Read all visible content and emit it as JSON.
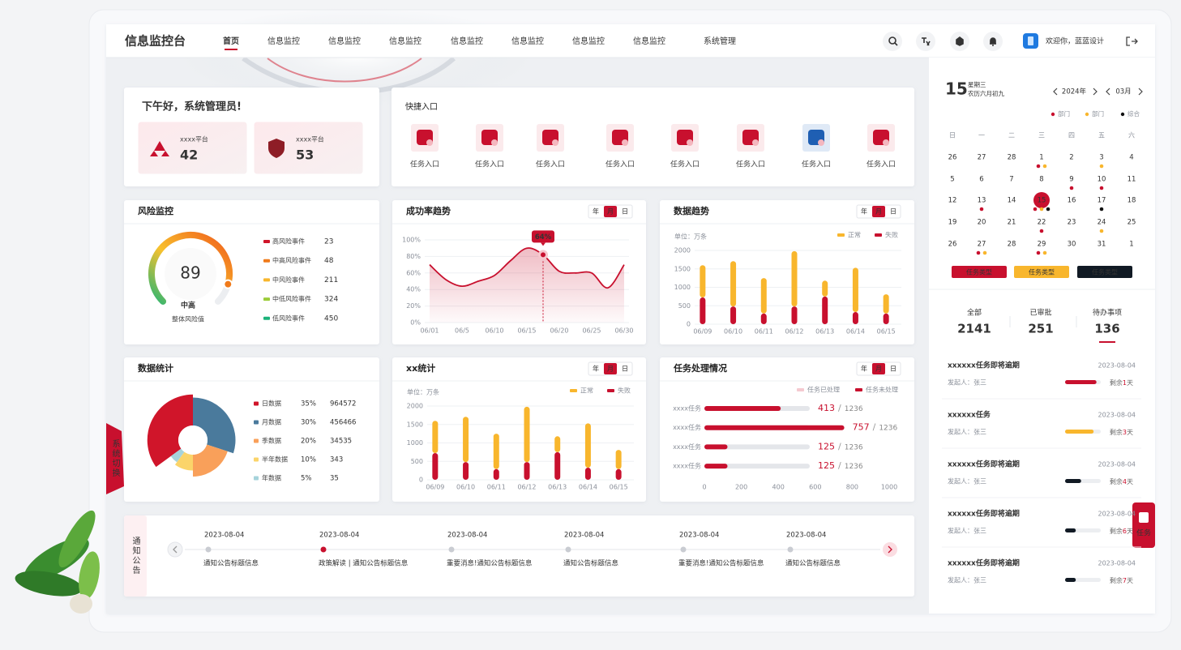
{
  "header": {
    "title": "信息监控台",
    "nav": [
      "首页",
      "信息监控",
      "信息监控",
      "信息监控",
      "信息监控",
      "信息监控",
      "信息监控",
      "信息监控",
      "系统管理"
    ],
    "active_nav": 0,
    "user": "欢迎你，蓝蓝设计"
  },
  "greeting": {
    "title": "下午好，系统管理员!",
    "platforms": [
      {
        "name": "xxxx平台",
        "value": 42
      },
      {
        "name": "xxxx平台",
        "value": 53
      }
    ]
  },
  "shortcuts": {
    "title": "快捷入口",
    "items": [
      "任务入口",
      "任务入口",
      "任务入口",
      "任务入口",
      "任务入口",
      "任务入口",
      "任务入口",
      "任务入口"
    ]
  },
  "risk_monitor": {
    "title": "风险监控",
    "gauge": {
      "value": 89,
      "range": [
        0,
        100
      ],
      "level": "中高",
      "label": "整体风险值",
      "color": "#f07a1a"
    },
    "items": [
      {
        "name": "高风险事件",
        "value": 23,
        "color": "#d0152a"
      },
      {
        "name": "中高风险事件",
        "value": 48,
        "color": "#f07a1a"
      },
      {
        "name": "中风险事件",
        "value": 211,
        "color": "#f8b62d"
      },
      {
        "name": "中低风险事件",
        "value": 324,
        "color": "#9ccc3a"
      },
      {
        "name": "低风险事件",
        "value": 450,
        "color": "#1bb27a"
      }
    ]
  },
  "success_trend": {
    "title": "成功率趋势",
    "tabs": [
      "年",
      "月",
      "日"
    ],
    "active_tab": 1,
    "chart": {
      "type": "line",
      "categories": [
        "06/01",
        null,
        "06/5",
        null,
        "06/10",
        null,
        "06/15",
        null,
        "06/20",
        null,
        "06/25",
        null,
        "06/30"
      ],
      "values": [
        70,
        52,
        44,
        50,
        57,
        75,
        90,
        82,
        62,
        60,
        60,
        42,
        70
      ],
      "color": "#c8102e",
      "ylim": [
        0,
        100
      ],
      "yticks": [
        {
          "value": 0,
          "label": "0%"
        },
        {
          "value": 20,
          "label": "20%"
        },
        {
          "value": 40,
          "label": "40%"
        },
        {
          "value": 60,
          "label": "60%"
        },
        {
          "value": 80,
          "label": "80%"
        },
        {
          "value": 100,
          "label": "100%"
        }
      ],
      "grid": true,
      "annotation": "64%"
    }
  },
  "data_trend": {
    "title": "数据趋势",
    "tabs": [
      "年",
      "月",
      "日"
    ],
    "active_tab": 1,
    "chart": {
      "type": "bar",
      "stacked": true,
      "unit": "单位：万条",
      "categories": [
        "06/09",
        "06/10",
        "06/11",
        "06/12",
        "06/13",
        "06/14",
        "06/15"
      ],
      "series": [
        {
          "name": "正常",
          "color": "#f8b62d",
          "values": [
            875,
            1230,
            960,
            1500,
            430,
            1200,
            520
          ]
        },
        {
          "name": "失败",
          "color": "#c8102e",
          "values": [
            725,
            480,
            290,
            480,
            750,
            330,
            290
          ]
        }
      ],
      "ylim": [
        0,
        2000
      ],
      "yticks": [
        0,
        500,
        1000,
        1500,
        2000
      ],
      "grid": true
    }
  },
  "data_stats": {
    "title": "数据统计",
    "chart": {
      "type": "pie",
      "categories": [
        "日数据",
        "月数据",
        "季数据",
        "半年数据",
        "年数据"
      ],
      "values": [
        35,
        30,
        20,
        10,
        5
      ],
      "value_labels": [
        "35%",
        "30%",
        "20%",
        "10%",
        "5%"
      ],
      "counts": [
        964572,
        456466,
        34535,
        343,
        35
      ],
      "colors": [
        "#d0152a",
        "#4a7a9c",
        "#f9a05a",
        "#fbd46a",
        "#a6d3db"
      ]
    }
  },
  "xx_stats": {
    "title": "xx统计",
    "tabs": [
      "年",
      "月",
      "日"
    ],
    "active_tab": 1,
    "chart": {
      "type": "bar",
      "stacked": true,
      "unit": "单位：万条",
      "categories": [
        "06/09",
        "06/10",
        "06/11",
        "06/12",
        "06/13",
        "06/14",
        "06/15"
      ],
      "series": [
        {
          "name": "正常",
          "color": "#f8b62d",
          "values": [
            875,
            1230,
            960,
            1500,
            430,
            1200,
            520
          ]
        },
        {
          "name": "失败",
          "color": "#c8102e",
          "values": [
            725,
            480,
            290,
            480,
            750,
            330,
            290
          ]
        }
      ],
      "ylim": [
        0,
        2000
      ],
      "yticks": [
        0,
        500,
        1000,
        1500,
        2000
      ],
      "grid": true
    }
  },
  "task_status": {
    "title": "任务处理情况",
    "tabs": [
      "年",
      "月",
      "日"
    ],
    "active_tab": 1,
    "chart": {
      "type": "hbar",
      "categories": [
        "xxxx任务",
        "xxxx任务",
        "xxxx任务",
        "xxxx任务"
      ],
      "legend": [
        {
          "name": "任务已处理",
          "color": "#f5c9d0"
        },
        {
          "name": "任务未处理",
          "color": "#c8102e"
        }
      ],
      "values": [
        413,
        757,
        125,
        125
      ],
      "totals": [
        1236,
        1236,
        1236,
        1236
      ],
      "separator": "/",
      "color": "#c8102e",
      "xlim": [
        0,
        1000
      ],
      "xticks": [
        0,
        200,
        400,
        600,
        800,
        1000
      ]
    }
  },
  "notices": {
    "title": "通知公告",
    "active": 1,
    "items": [
      {
        "date": "2023-08-04",
        "text": "通知公告标题信息"
      },
      {
        "date": "2023-08-04",
        "text": "政策解读 | 通知公告标题信息"
      },
      {
        "date": "2023-08-04",
        "text": "重要消息!通知公告标题信息"
      },
      {
        "date": "2023-08-04",
        "text": "通知公告标题信息"
      },
      {
        "date": "2023-08-04",
        "text": "重要消息!通知公告标题信息"
      },
      {
        "date": "2023-08-04",
        "text": "通知公告标题信息"
      }
    ]
  },
  "calendar": {
    "day": 15,
    "weekday": "星期三",
    "lunar": "农历六月初九",
    "year": "2024年",
    "month": "03月",
    "selected_day": 15,
    "legend": [
      {
        "name": "部门",
        "color": "#c8102e"
      },
      {
        "name": "部门",
        "color": "#f8b62d"
      },
      {
        "name": "综合",
        "color": "#111111"
      }
    ],
    "weekdays": [
      "日",
      "一",
      "二",
      "三",
      "四",
      "五",
      "六"
    ],
    "days": [
      {
        "day": 26,
        "outside": true
      },
      {
        "day": 27,
        "outside": true
      },
      {
        "day": 28,
        "outside": true
      },
      {
        "day": 1,
        "events": [
          0,
          1
        ]
      },
      {
        "day": 2
      },
      {
        "day": 3,
        "events": [
          1
        ]
      },
      {
        "day": 4
      },
      {
        "day": 5
      },
      {
        "day": 6
      },
      {
        "day": 7
      },
      {
        "day": 8
      },
      {
        "day": 9,
        "events": [
          0
        ]
      },
      {
        "day": 10,
        "events": [
          0
        ]
      },
      {
        "day": 11
      },
      {
        "day": 12
      },
      {
        "day": 13,
        "events": [
          0
        ]
      },
      {
        "day": 14
      },
      {
        "day": 15,
        "events": [
          0,
          1,
          2
        ]
      },
      {
        "day": 16
      },
      {
        "day": 17,
        "events": [
          2
        ]
      },
      {
        "day": 18
      },
      {
        "day": 19
      },
      {
        "day": 20
      },
      {
        "day": 21
      },
      {
        "day": 22,
        "events": [
          0
        ]
      },
      {
        "day": 23
      },
      {
        "day": 24,
        "events": [
          1
        ]
      },
      {
        "day": 25
      },
      {
        "day": 26
      },
      {
        "day": 27,
        "events": [
          0,
          1
        ]
      },
      {
        "day": 28
      },
      {
        "day": 29,
        "events": [
          0,
          1
        ]
      },
      {
        "day": 30
      },
      {
        "day": 31
      },
      {
        "day": 1,
        "outside": true
      }
    ],
    "buttons": [
      {
        "text": "任务类型",
        "color": "#c8102e"
      },
      {
        "text": "任务类型",
        "color": "#f8b62d"
      },
      {
        "text": "任务类型",
        "color": "#111a24"
      }
    ]
  },
  "stats": [
    {
      "label": "全部",
      "value": 2141
    },
    {
      "label": "已审批",
      "value": 251
    },
    {
      "label": "待办事项",
      "value": 136
    }
  ],
  "todos": [
    {
      "title": "xxxxxx任务即将逾期",
      "date": "2023-08-04",
      "initiator": "发起人：张三",
      "progress": 0.88,
      "color": "#c8102e",
      "remaining_prefix": "剩余",
      "days": 1,
      "remaining_suffix": "天"
    },
    {
      "title": "xxxxxx任务",
      "date": "2023-08-04",
      "initiator": "发起人：张三",
      "progress": 0.8,
      "color": "#f8b62d",
      "remaining_prefix": "剩余",
      "days": 3,
      "remaining_suffix": "天"
    },
    {
      "title": "xxxxxx任务即将逾期",
      "date": "2023-08-04",
      "initiator": "发起人：张三",
      "progress": 0.45,
      "color": "#111a24",
      "remaining_prefix": "剩余",
      "days": 4,
      "remaining_suffix": "天"
    },
    {
      "title": "xxxxxx任务即将逾期",
      "date": "2023-08-04",
      "initiator": "发起人：张三",
      "progress": 0.3,
      "color": "#111a24",
      "remaining_prefix": "剩余",
      "days": 6,
      "remaining_suffix": "天"
    },
    {
      "title": "xxxxxx任务即将逾期",
      "date": "2023-08-04",
      "initiator": "发起人：张三",
      "progress": 0.3,
      "color": "#111a24",
      "remaining_prefix": "剩余",
      "days": 7,
      "remaining_suffix": "天"
    }
  ],
  "side_tabs": {
    "system": "系统切换",
    "task": "任务"
  }
}
